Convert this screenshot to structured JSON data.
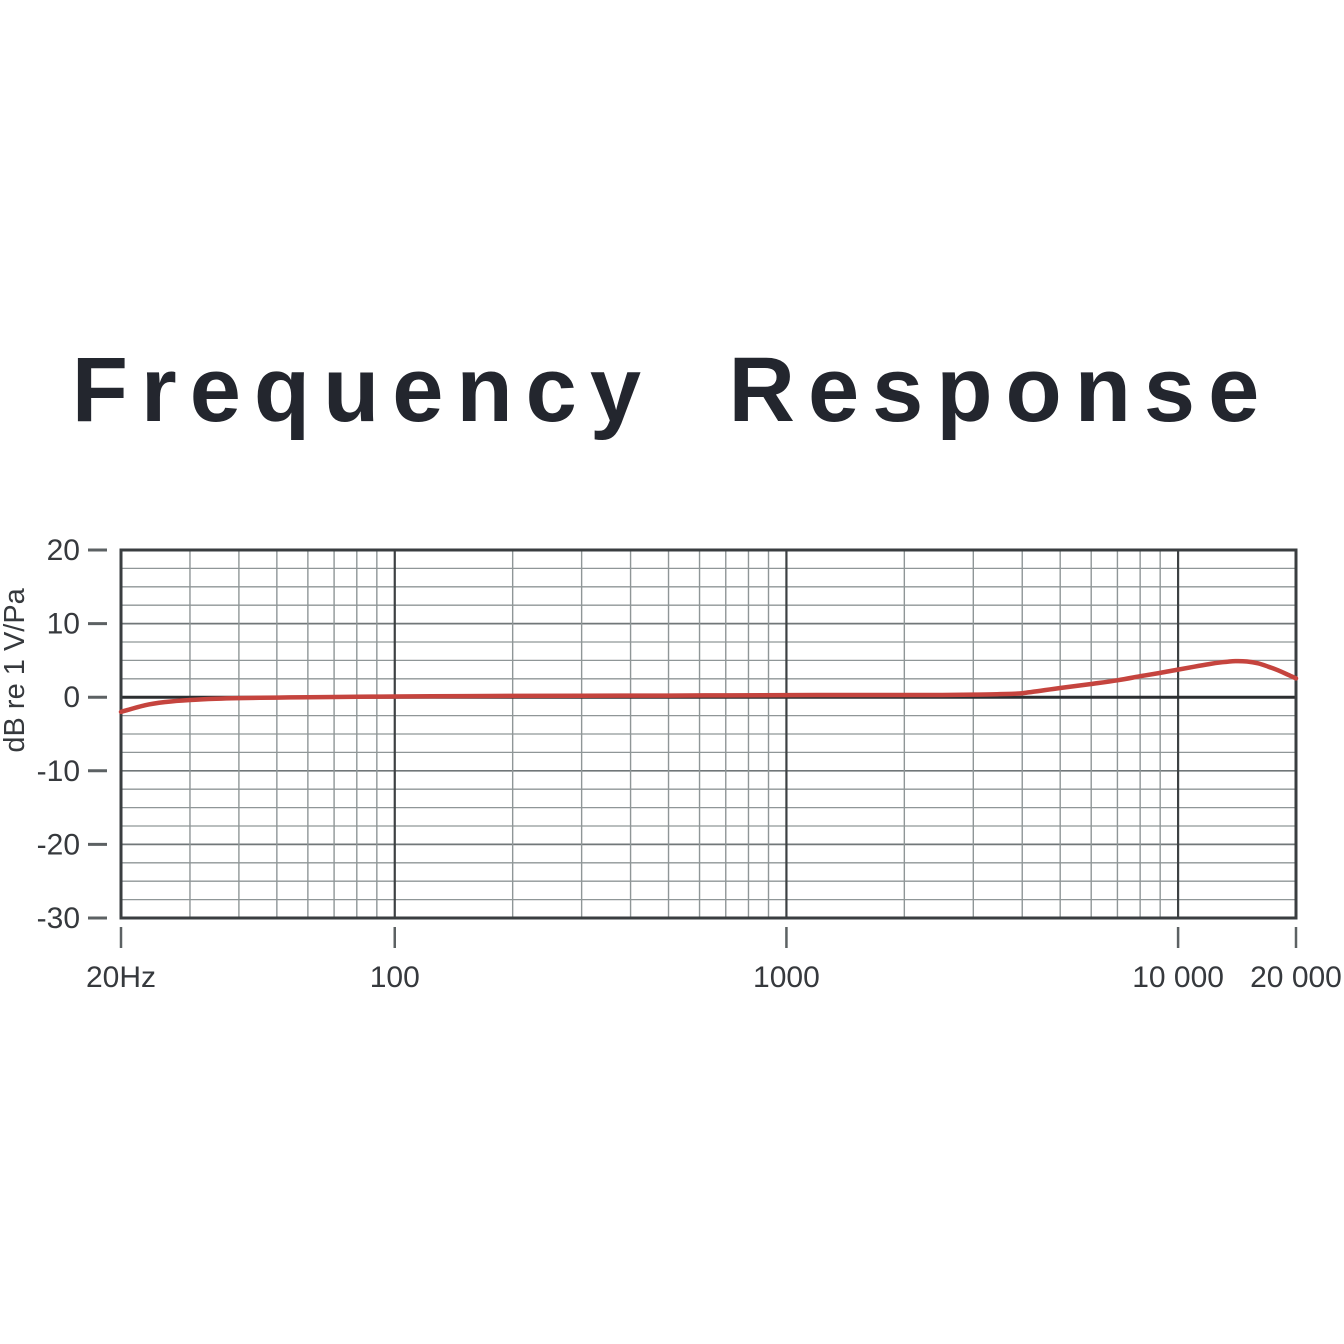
{
  "header": {
    "title": "Frequency Response"
  },
  "colors": {
    "background": "#ffffff",
    "title_text": "#23262e",
    "tick_text": "#36393d",
    "plot_border": "#3a3e40",
    "zero_line": "#2c2f31",
    "grid_decade": "#3d4143",
    "grid_major_h": "#717779",
    "grid_minor": "#8f9697",
    "tick_mark": "#5c6163",
    "curve": "#c5443e"
  },
  "chart_data": {
    "type": "line",
    "title": "Frequency Response",
    "ylabel": "dB re 1 V/Pa",
    "x_scale": "log",
    "xlim": [
      20,
      20000
    ],
    "ylim": [
      -30,
      20
    ],
    "grid": {
      "y_minor_step": 2.5,
      "y_major_step": 10,
      "x_decade_lines": [
        100,
        1000,
        10000
      ],
      "grid_on": true
    },
    "legend": "none",
    "x_ticks": [
      {
        "value": 20,
        "label": "20Hz"
      },
      {
        "value": 100,
        "label": "100"
      },
      {
        "value": 1000,
        "label": "1000"
      },
      {
        "value": 10000,
        "label": "10 000"
      },
      {
        "value": 20000,
        "label": "20 000"
      }
    ],
    "y_ticks": [
      {
        "value": 20,
        "label": "20"
      },
      {
        "value": 10,
        "label": "10"
      },
      {
        "value": 0,
        "label": "0"
      },
      {
        "value": -10,
        "label": "-10"
      },
      {
        "value": -20,
        "label": "-20"
      },
      {
        "value": -30,
        "label": "-30"
      }
    ],
    "series": [
      {
        "name": "frequency-response",
        "color": "#c5443e",
        "points": [
          [
            20,
            -2.0
          ],
          [
            23,
            -1.1
          ],
          [
            26,
            -0.65
          ],
          [
            30,
            -0.38
          ],
          [
            35,
            -0.2
          ],
          [
            40,
            -0.12
          ],
          [
            50,
            -0.05
          ],
          [
            60,
            0.0
          ],
          [
            80,
            0.05
          ],
          [
            100,
            0.1
          ],
          [
            150,
            0.15
          ],
          [
            200,
            0.18
          ],
          [
            300,
            0.2
          ],
          [
            500,
            0.22
          ],
          [
            700,
            0.25
          ],
          [
            1000,
            0.28
          ],
          [
            1500,
            0.3
          ],
          [
            2000,
            0.3
          ],
          [
            2500,
            0.3
          ],
          [
            3000,
            0.35
          ],
          [
            3500,
            0.42
          ],
          [
            4000,
            0.55
          ],
          [
            5000,
            1.25
          ],
          [
            6000,
            1.8
          ],
          [
            7000,
            2.3
          ],
          [
            8000,
            2.85
          ],
          [
            9000,
            3.3
          ],
          [
            10000,
            3.75
          ],
          [
            11000,
            4.15
          ],
          [
            12000,
            4.5
          ],
          [
            13000,
            4.75
          ],
          [
            14000,
            4.9
          ],
          [
            15000,
            4.85
          ],
          [
            16000,
            4.6
          ],
          [
            17000,
            4.15
          ],
          [
            18000,
            3.65
          ],
          [
            19000,
            3.1
          ],
          [
            20000,
            2.55
          ]
        ]
      }
    ]
  }
}
